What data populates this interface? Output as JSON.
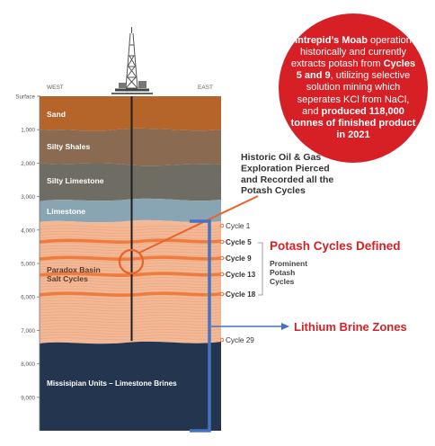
{
  "compass": {
    "west": "WEST",
    "east": "EAST"
  },
  "depth_scale": [
    {
      "label": "Surface",
      "depth": 0
    },
    {
      "label": "1,000",
      "depth": 1000
    },
    {
      "label": "2,000",
      "depth": 2000
    },
    {
      "label": "3,000",
      "depth": 3000
    },
    {
      "label": "4,000",
      "depth": 4000
    },
    {
      "label": "5,000",
      "depth": 5000
    },
    {
      "label": "6,000",
      "depth": 6000
    },
    {
      "label": "7,000",
      "depth": 7000
    },
    {
      "label": "8,000",
      "depth": 8000
    },
    {
      "label": "9,000",
      "depth": 9000
    }
  ],
  "layers": [
    {
      "label": "Sand",
      "color": "#b5652a"
    },
    {
      "label": "Silty Shales",
      "color": "#8a6b52"
    },
    {
      "label": "Silty Limestone",
      "color": "#6f6c63"
    },
    {
      "label": "Limestone",
      "color": "#89a5b4"
    },
    {
      "label": "Paradox Basin\nSalt Cycles",
      "color": "#f3b896"
    },
    {
      "label": "Missisipian Units – Limestone Brines",
      "color": "#24364f"
    }
  ],
  "cycles": [
    {
      "label": "Cycle 1",
      "bold": false
    },
    {
      "label": "Cycle 5",
      "bold": true
    },
    {
      "label": "Cycle 9",
      "bold": true
    },
    {
      "label": "Cycle 13",
      "bold": true
    },
    {
      "label": "Cycle 18",
      "bold": true
    },
    {
      "label": "Cycle 29",
      "bold": false
    }
  ],
  "annotations": {
    "exploration": "Historic Oil & Gas\nExploration Pierced\nand Recorded all the\nPotash Cycles",
    "potash_defined": "Potash Cycles Defined",
    "prominent": "Prominent\nPotash\nCycles",
    "lithium": "Lithium Brine Zones"
  },
  "callout": {
    "parts": [
      {
        "text": "Intrepid’s Moab",
        "bold": true
      },
      {
        "text": " operation historically and currently extracts potash from ",
        "bold": false
      },
      {
        "text": "Cycles 5 and 9",
        "bold": true
      },
      {
        "text": ", utilizing selective solution mining which seperates KCl from NaCl, and ",
        "bold": false
      },
      {
        "text": "produced 118,000 tonnes of finished product in 2021",
        "bold": true
      }
    ]
  },
  "colors": {
    "accent_red": "#d71f26",
    "orange": "#f07c3a",
    "bracket_blue": "#4472c4",
    "salt_band": "#ee7c3e"
  }
}
